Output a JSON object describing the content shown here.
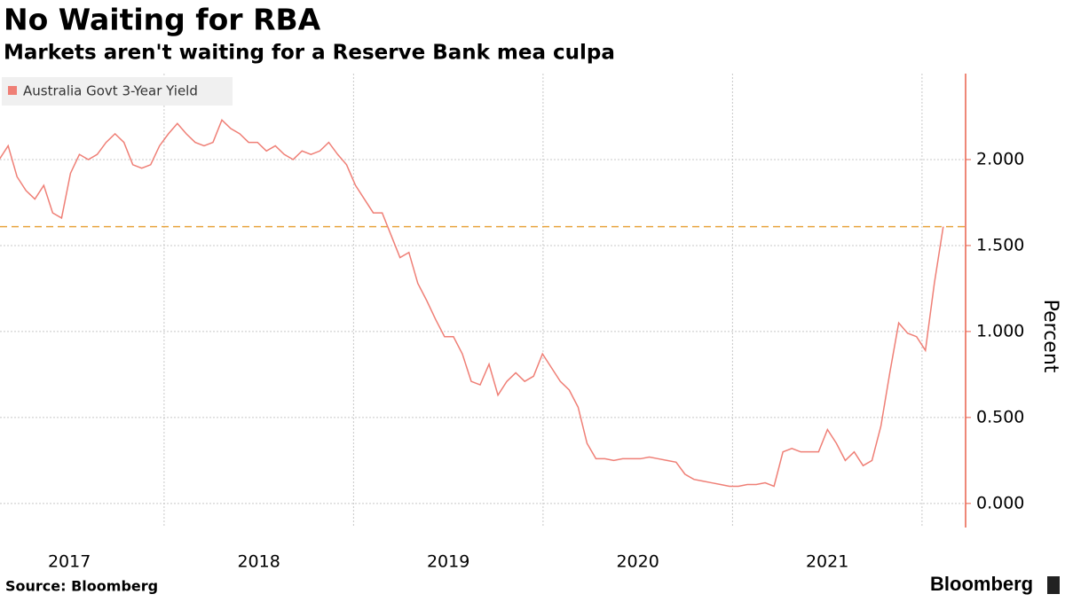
{
  "chart_data": {
    "type": "line",
    "title": "No Waiting for RBA",
    "subtitle": "Markets aren't waiting for a Reserve Bank mea culpa",
    "y_label": "Percent",
    "source": "Source: Bloomberg",
    "brand": "Bloomberg",
    "y_axis_side": "right",
    "grid": true,
    "legend": "top-left",
    "reference_line": {
      "value": 1.61,
      "color": "#e8a33c"
    },
    "xlim": [
      2017.134,
      2022.23
    ],
    "ylim": [
      -0.14,
      2.5
    ],
    "xticks": [
      {
        "value": 2017.5,
        "label": "2017"
      },
      {
        "value": 2018.5,
        "label": "2018"
      },
      {
        "value": 2019.5,
        "label": "2019"
      },
      {
        "value": 2020.5,
        "label": "2020"
      },
      {
        "value": 2021.5,
        "label": "2021"
      }
    ],
    "yticks": [
      {
        "value": 0,
        "label": "0.000"
      },
      {
        "value": 0.5,
        "label": "0.500"
      },
      {
        "value": 1,
        "label": "1.000"
      },
      {
        "value": 1.5,
        "label": "1.500"
      },
      {
        "value": 2,
        "label": "2.000"
      }
    ],
    "x": [
      2017.13,
      2017.177,
      2017.224,
      2017.271,
      2017.318,
      2017.365,
      2017.412,
      2017.459,
      2017.506,
      2017.553,
      2017.6,
      2017.647,
      2017.694,
      2017.741,
      2017.788,
      2017.835,
      2017.882,
      2017.929,
      2017.976,
      2018.023,
      2018.07,
      2018.117,
      2018.164,
      2018.211,
      2018.258,
      2018.305,
      2018.352,
      2018.399,
      2018.446,
      2018.493,
      2018.54,
      2018.587,
      2018.634,
      2018.681,
      2018.728,
      2018.775,
      2018.822,
      2018.869,
      2018.916,
      2018.963,
      2019.01,
      2019.057,
      2019.104,
      2019.151,
      2019.198,
      2019.245,
      2019.292,
      2019.339,
      2019.386,
      2019.433,
      2019.48,
      2019.527,
      2019.574,
      2019.621,
      2019.668,
      2019.715,
      2019.762,
      2019.809,
      2019.856,
      2019.903,
      2019.95,
      2019.997,
      2020.044,
      2020.091,
      2020.138,
      2020.185,
      2020.232,
      2020.279,
      2020.326,
      2020.373,
      2020.42,
      2020.467,
      2020.514,
      2020.561,
      2020.608,
      2020.655,
      2020.702,
      2020.749,
      2020.796,
      2020.843,
      2020.89,
      2020.937,
      2020.984,
      2021.031,
      2021.078,
      2021.125,
      2021.172,
      2021.219,
      2021.266,
      2021.313,
      2021.36,
      2021.407,
      2021.454,
      2021.501,
      2021.548,
      2021.595,
      2021.642,
      2021.689,
      2021.736,
      2021.783,
      2021.83,
      2021.877,
      2021.924,
      2021.971,
      2022.018,
      2022.065,
      2022.112
    ],
    "series": [
      {
        "name": "Australia Govt 3-Year Yield",
        "color": "#ef7f76",
        "values": [
          2.0,
          2.08,
          1.9,
          1.82,
          1.77,
          1.85,
          1.69,
          1.66,
          1.92,
          2.03,
          2.0,
          2.03,
          2.1,
          2.15,
          2.1,
          1.97,
          1.95,
          1.97,
          2.08,
          2.15,
          2.21,
          2.15,
          2.1,
          2.08,
          2.1,
          2.23,
          2.18,
          2.15,
          2.1,
          2.1,
          2.05,
          2.08,
          2.03,
          2.0,
          2.05,
          2.03,
          2.05,
          2.1,
          2.03,
          1.97,
          1.85,
          1.77,
          1.69,
          1.69,
          1.56,
          1.43,
          1.46,
          1.28,
          1.18,
          1.07,
          0.97,
          0.97,
          0.87,
          0.71,
          0.69,
          0.81,
          0.63,
          0.71,
          0.76,
          0.71,
          0.74,
          0.87,
          0.79,
          0.71,
          0.66,
          0.56,
          0.35,
          0.26,
          0.26,
          0.25,
          0.26,
          0.26,
          0.26,
          0.27,
          0.26,
          0.25,
          0.24,
          0.17,
          0.14,
          0.13,
          0.12,
          0.11,
          0.1,
          0.1,
          0.11,
          0.11,
          0.12,
          0.1,
          0.3,
          0.32,
          0.3,
          0.3,
          0.3,
          0.43,
          0.35,
          0.25,
          0.3,
          0.22,
          0.25,
          0.45,
          0.76,
          1.05,
          0.99,
          0.97,
          0.89,
          1.28,
          1.61
        ]
      }
    ]
  }
}
